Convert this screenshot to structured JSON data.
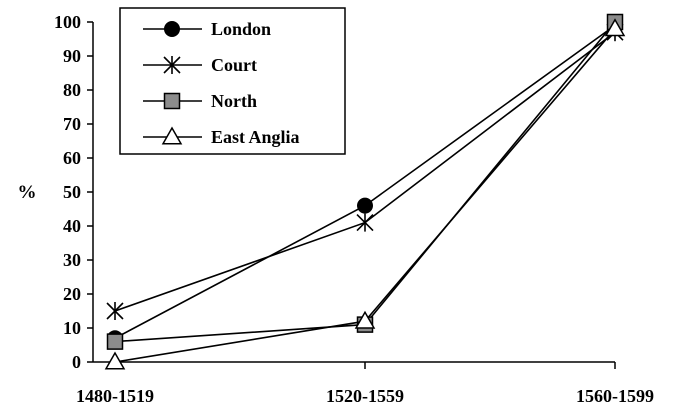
{
  "chart_data": {
    "type": "line",
    "title": "",
    "xlabel": "",
    "ylabel": "%",
    "categories": [
      "1480-1519",
      "1520-1559",
      "1560-1599"
    ],
    "yticks": [
      0,
      10,
      20,
      30,
      40,
      50,
      60,
      70,
      80,
      90,
      100
    ],
    "ylim": [
      0,
      100
    ],
    "grid": false,
    "legend": "top-left",
    "series": [
      {
        "name": "London",
        "marker": "filled-circle",
        "color": "#000000",
        "values": [
          7,
          46,
          99
        ]
      },
      {
        "name": "Court",
        "marker": "asterisk",
        "color": "#000000",
        "values": [
          15,
          41,
          97
        ]
      },
      {
        "name": "North",
        "marker": "gray-square",
        "color": "#808080",
        "values": [
          6,
          11,
          100
        ]
      },
      {
        "name": "East Anglia",
        "marker": "open-triangle",
        "color": "#000000",
        "values": [
          0,
          12,
          98
        ]
      }
    ]
  }
}
